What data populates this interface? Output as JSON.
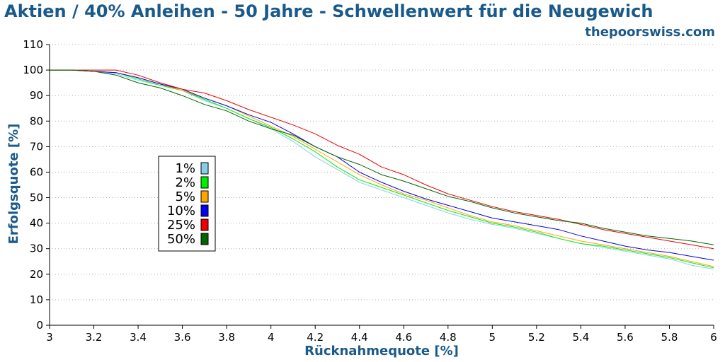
{
  "colors": {
    "title": "#1a5a8a",
    "grid": "#b0b0b0",
    "axis": "#000000"
  },
  "chart_data": {
    "type": "line",
    "title": "Aktien / 40% Anleihen - 50 Jahre - Schwellenwert für die Neugewich",
    "subtitle": "thepoorswiss.com",
    "xlabel": "Rücknahmequote [%]",
    "ylabel": "Erfolgsquote [%]",
    "xlim": [
      3,
      6
    ],
    "ylim": [
      0,
      110
    ],
    "xticks": [
      "3",
      "3.2",
      "3.4",
      "3.6",
      "3.8",
      "4",
      "4.2",
      "4.4",
      "4.6",
      "4.8",
      "5",
      "5.2",
      "5.4",
      "5.6",
      "5.8",
      "6"
    ],
    "yticks": [
      "0",
      "10",
      "20",
      "30",
      "40",
      "50",
      "60",
      "70",
      "80",
      "90",
      "100",
      "110"
    ],
    "grid": "horizontal-dotted",
    "legend_position": "left-center",
    "x": [
      3.0,
      3.1,
      3.2,
      3.3,
      3.4,
      3.5,
      3.6,
      3.7,
      3.8,
      3.9,
      4.0,
      4.1,
      4.2,
      4.3,
      4.4,
      4.5,
      4.6,
      4.7,
      4.8,
      4.9,
      5.0,
      5.1,
      5.2,
      5.3,
      5.4,
      5.5,
      5.6,
      5.7,
      5.8,
      5.9,
      6.0
    ],
    "series": [
      {
        "name": "1%",
        "color": "#87ceeb",
        "values": [
          100,
          100,
          99.5,
          98.5,
          96,
          94,
          92,
          88,
          85,
          81,
          77,
          72,
          66,
          61,
          56,
          53,
          50,
          47,
          44,
          41.5,
          39.5,
          38,
          36,
          34,
          32,
          30.5,
          29,
          27.5,
          26,
          23.5,
          22
        ]
      },
      {
        "name": "2%",
        "color": "#00ee00",
        "values": [
          100,
          100,
          99.5,
          99,
          96.5,
          94,
          92,
          88.5,
          85,
          81,
          77.5,
          73,
          68,
          62,
          57,
          54,
          51,
          48,
          45,
          42.5,
          40,
          38.5,
          36.5,
          34,
          32,
          31,
          29.5,
          28,
          26.5,
          24.5,
          22.5
        ]
      },
      {
        "name": "5%",
        "color": "#ffa500",
        "values": [
          100,
          100,
          99.5,
          99,
          97,
          94.5,
          92,
          89,
          86,
          82,
          78,
          74,
          69,
          64,
          59,
          55,
          51.5,
          49,
          46,
          43,
          40.5,
          39,
          37,
          35,
          33,
          31.5,
          30,
          28.5,
          27,
          25,
          23
        ]
      },
      {
        "name": "10%",
        "color": "#0000ee",
        "values": [
          100,
          100,
          99.5,
          99,
          97,
          94.5,
          92.5,
          89,
          86,
          82.5,
          79.5,
          75,
          70,
          66,
          60,
          56,
          52.5,
          49.5,
          47,
          44.5,
          42,
          40.5,
          39,
          37.5,
          35,
          33,
          31,
          29.5,
          28.5,
          27,
          25.5
        ]
      },
      {
        "name": "25%",
        "color": "#ee0000",
        "values": [
          100,
          100,
          100,
          100,
          98,
          95,
          92.5,
          91,
          88,
          84.5,
          81.5,
          78.5,
          75,
          70.5,
          67,
          62,
          59,
          55,
          51.5,
          49,
          46.5,
          44.5,
          43,
          41.5,
          39.5,
          37.5,
          36,
          34.5,
          33,
          31.5,
          30
        ]
      },
      {
        "name": "50%",
        "color": "#006400",
        "values": [
          100,
          100,
          99.5,
          98,
          95,
          93,
          90,
          86.5,
          84,
          80,
          77,
          74.5,
          70,
          66,
          63,
          59,
          56.5,
          53.5,
          50.5,
          48.5,
          46,
          44,
          42.5,
          41,
          40,
          38,
          36.5,
          35,
          34,
          33,
          31.5
        ]
      }
    ]
  }
}
